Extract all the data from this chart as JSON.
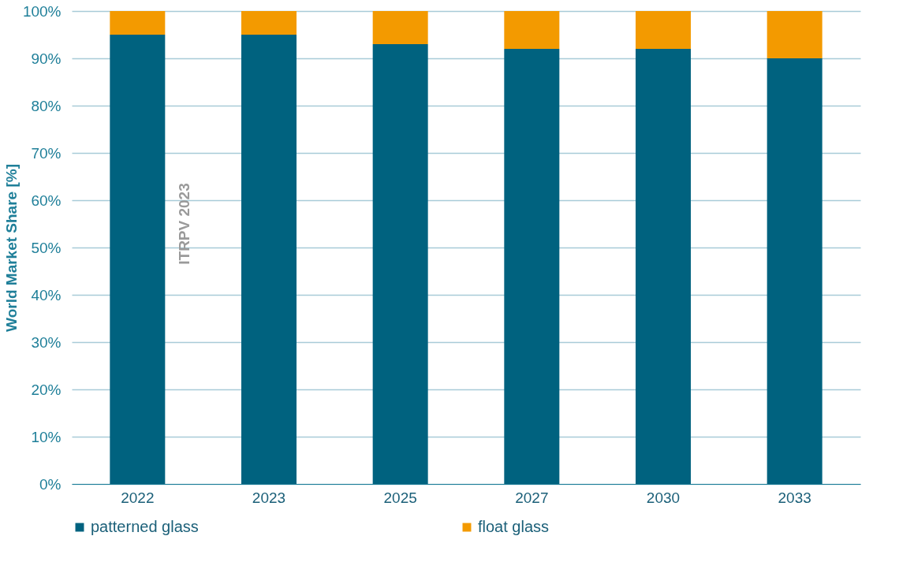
{
  "chart_data": {
    "type": "bar",
    "stacked": true,
    "ylabel": "World Market Share [%]",
    "categories": [
      "2022",
      "2023",
      "2025",
      "2027",
      "2030",
      "2033"
    ],
    "series": [
      {
        "name": "patterned glass",
        "color": "#00627f",
        "values": [
          95,
          95,
          93,
          92,
          92,
          90
        ]
      },
      {
        "name": "float glass",
        "color": "#f39a00",
        "values": [
          5,
          5,
          7,
          8,
          8,
          10
        ]
      }
    ],
    "ylim": [
      0,
      100
    ],
    "yticks": [
      {
        "value": 0,
        "label": "0%"
      },
      {
        "value": 10,
        "label": "10%"
      },
      {
        "value": 20,
        "label": "20%"
      },
      {
        "value": 30,
        "label": "30%"
      },
      {
        "value": 40,
        "label": "40%"
      },
      {
        "value": 50,
        "label": "50%"
      },
      {
        "value": 60,
        "label": "60%"
      },
      {
        "value": 70,
        "label": "70%"
      },
      {
        "value": 80,
        "label": "80%"
      },
      {
        "value": 90,
        "label": "90%"
      },
      {
        "value": 100,
        "label": "100%"
      }
    ],
    "grid": "y",
    "legend": "bottom",
    "annotations": [
      "ITRPV 2023"
    ]
  }
}
